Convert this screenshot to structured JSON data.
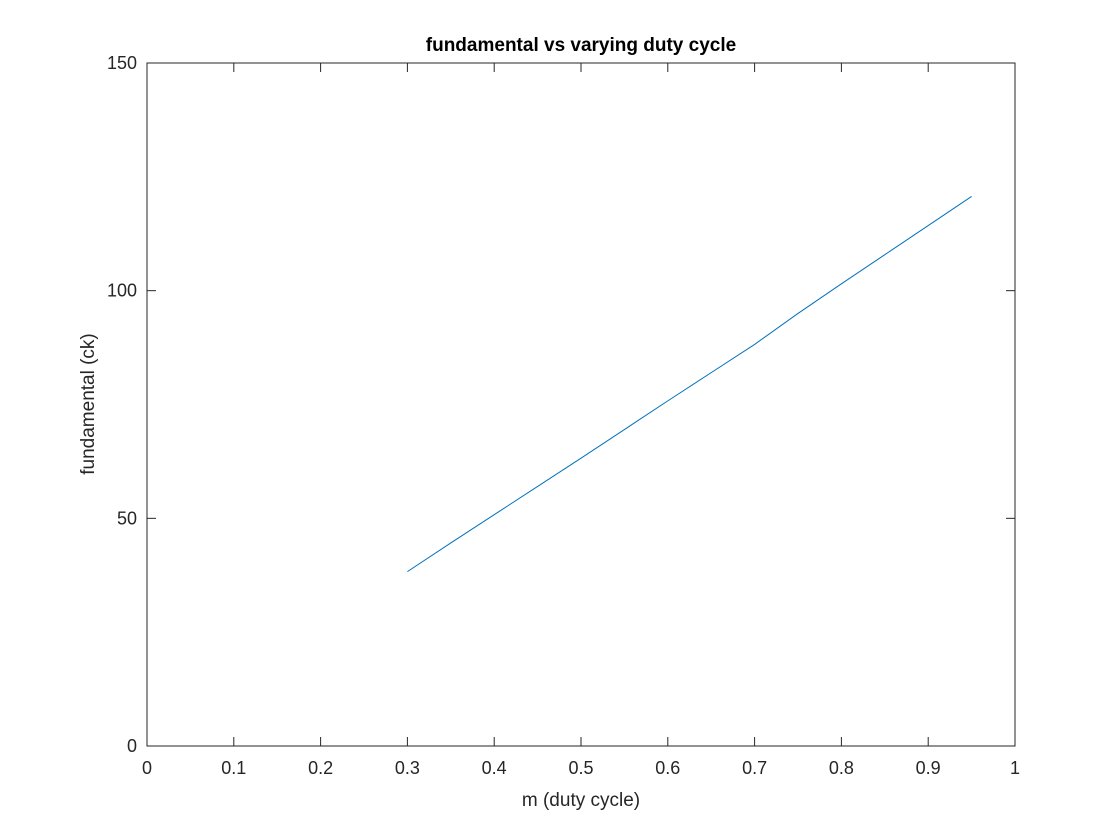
{
  "chart_data": {
    "type": "line",
    "title": "fundamental vs varying duty cycle",
    "xlabel": "m (duty cycle)",
    "ylabel": "fundamental (ck)",
    "xlim": [
      0,
      1
    ],
    "ylim": [
      0,
      150
    ],
    "xticks": [
      "0",
      "0.1",
      "0.2",
      "0.3",
      "0.4",
      "0.5",
      "0.6",
      "0.7",
      "0.8",
      "0.9",
      "1"
    ],
    "yticks": [
      "0",
      "50",
      "100",
      "150"
    ],
    "grid": false,
    "legend": "none",
    "series": [
      {
        "color": "#0072BD",
        "x": [
          0.3,
          0.35,
          0.4,
          0.45,
          0.5,
          0.55,
          0.6,
          0.65,
          0.7,
          0.75,
          0.8,
          0.85,
          0.9,
          0.95
        ],
        "y": [
          38.3,
          44.6,
          50.8,
          57.0,
          63.2,
          69.5,
          75.8,
          82.0,
          88.2,
          95.0,
          101.5,
          107.9,
          114.3,
          120.7
        ]
      }
    ]
  }
}
